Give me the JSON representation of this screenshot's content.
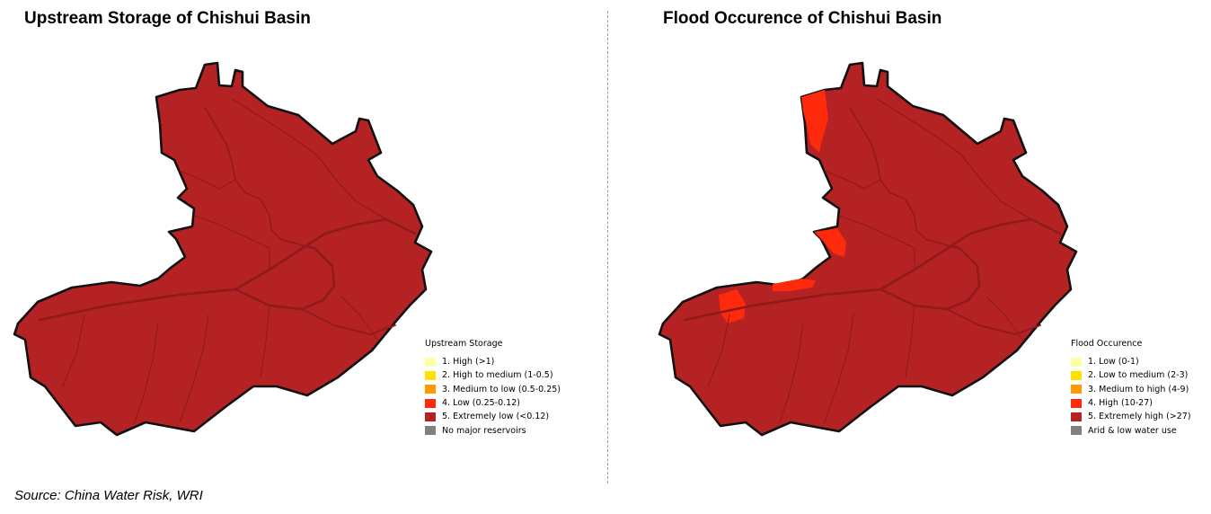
{
  "panels": {
    "left": {
      "title": "Upstream Storage of Chishui Basin",
      "legend_title": "Upstream Storage",
      "legend": [
        {
          "label": "1. High (>1)",
          "color": "#ffffa6"
        },
        {
          "label": "2. High to medium (1-0.5)",
          "color": "#ffe100"
        },
        {
          "label": "3. Medium to low (0.5-0.25)",
          "color": "#ff9a00"
        },
        {
          "label": "4. Low (0.25-0.12)",
          "color": "#ff2a0c"
        },
        {
          "label": "5. Extremely low (<0.12)",
          "color": "#b52224"
        },
        {
          "label": "No major reservoirs",
          "color": "#808080"
        }
      ],
      "basin_color": "#b52224"
    },
    "right": {
      "title": "Flood Occurence of Chishui Basin",
      "legend_title": "Flood Occurence",
      "legend": [
        {
          "label": "1. Low (0-1)",
          "color": "#ffffa6"
        },
        {
          "label": "2. Low to medium (2-3)",
          "color": "#ffe100"
        },
        {
          "label": "3. Medium to high (4-9)",
          "color": "#ff9a00"
        },
        {
          "label": "4. High (10-27)",
          "color": "#ff2a0c"
        },
        {
          "label": "5. Extremely high (>27)",
          "color": "#b52224"
        },
        {
          "label": "Arid & low water use",
          "color": "#808080"
        }
      ],
      "basin_color": "#b52224",
      "high_zone_color": "#ff2a0c"
    }
  },
  "source": "Source: China Water Risk, WRI"
}
